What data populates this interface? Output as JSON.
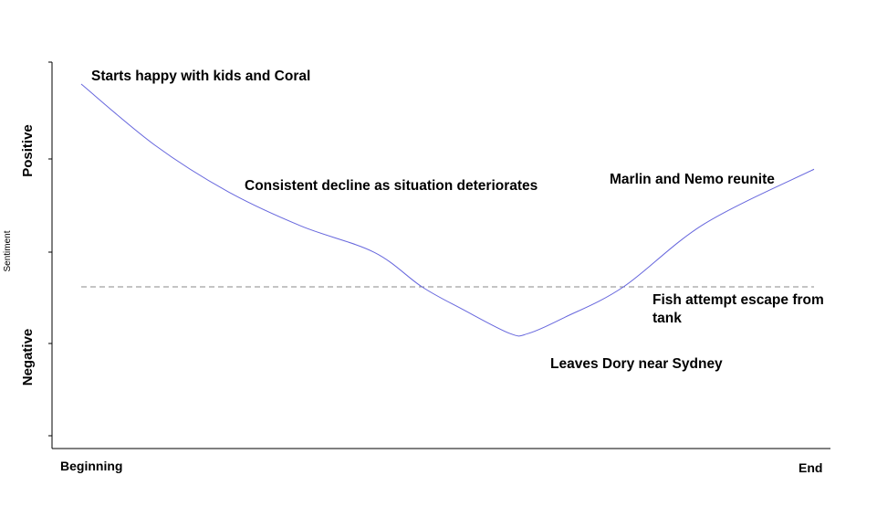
{
  "chart_data": {
    "type": "line",
    "xlabel": "",
    "ylabel": "Sentiment",
    "x_tick_labels": [
      "Beginning",
      "End"
    ],
    "y_side_labels": {
      "positive": "Positive",
      "negative": "Negative"
    },
    "xlim": [
      0,
      1
    ],
    "ylim": [
      -1,
      1
    ],
    "reference_line": {
      "y": 0,
      "style": "dashed",
      "color": "#888888"
    },
    "series": [
      {
        "color": "#6666dd",
        "points": [
          {
            "x": 0.0,
            "y": 1.0
          },
          {
            "x": 0.1,
            "y": 0.7
          },
          {
            "x": 0.2,
            "y": 0.47
          },
          {
            "x": 0.3,
            "y": 0.3
          },
          {
            "x": 0.4,
            "y": 0.17
          },
          {
            "x": 0.465,
            "y": 0.0
          },
          {
            "x": 0.52,
            "y": -0.11
          },
          {
            "x": 0.585,
            "y": -0.23
          },
          {
            "x": 0.61,
            "y": -0.23
          },
          {
            "x": 0.66,
            "y": -0.15
          },
          {
            "x": 0.74,
            "y": 0.0
          },
          {
            "x": 0.85,
            "y": 0.31
          },
          {
            "x": 1.0,
            "y": 0.58
          }
        ]
      }
    ],
    "annotations": [
      {
        "text": "Starts happy with kids and Coral"
      },
      {
        "text": "Consistent decline as situation deteriorates"
      },
      {
        "text": "Marlin and Nemo reunite"
      },
      {
        "text": "Fish attempt escape from tank"
      },
      {
        "text": "Leaves Dory near Sydney"
      }
    ],
    "grid": false
  }
}
